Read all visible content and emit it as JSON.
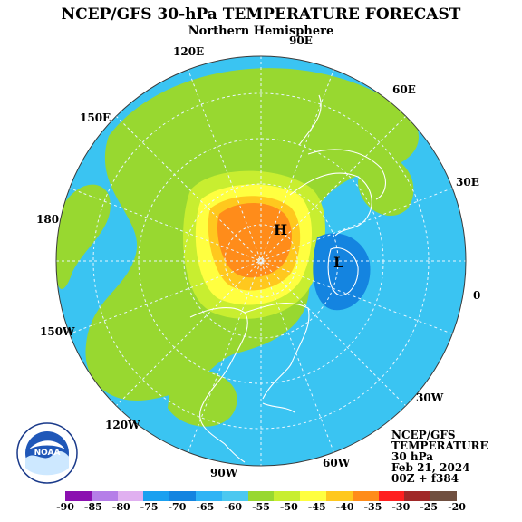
{
  "title": "NCEP/GFS 30-hPa TEMPERATURE FORECAST",
  "subtitle": "Northern Hemisphere",
  "longitude_labels": [
    "90E",
    "60E",
    "30E",
    "0",
    "30W",
    "60W",
    "90W",
    "120W",
    "150W",
    "180",
    "150E",
    "120E"
  ],
  "centers": {
    "high": "H",
    "low": "L"
  },
  "info": {
    "model": "NCEP/GFS",
    "field": "TEMPERATURE",
    "level": "30 hPa",
    "date": "Feb 21, 2024",
    "run": "00Z + f384"
  },
  "logo": {
    "name": "NOAA",
    "ring_text": "NATIONAL OCEANIC AND ATMOSPHERIC ADMINISTRATION · U.S. DEPARTMENT OF COMMERCE"
  },
  "legend": {
    "labels": [
      "-90",
      "-85",
      "-80",
      "-75",
      "-70",
      "-65",
      "-60",
      "-55",
      "-50",
      "-45",
      "-40",
      "-35",
      "-30",
      "-25",
      "-20"
    ],
    "colors": [
      "#8b10b0",
      "#b57ee8",
      "#e0b0f0",
      "#1aa0f0",
      "#1484e0",
      "#2fb4f5",
      "#4cc8f0",
      "#98d830",
      "#c8ee30",
      "#ffff40",
      "#ffc81e",
      "#ff8c1a",
      "#ff2020",
      "#a02828",
      "#705040"
    ]
  }
}
